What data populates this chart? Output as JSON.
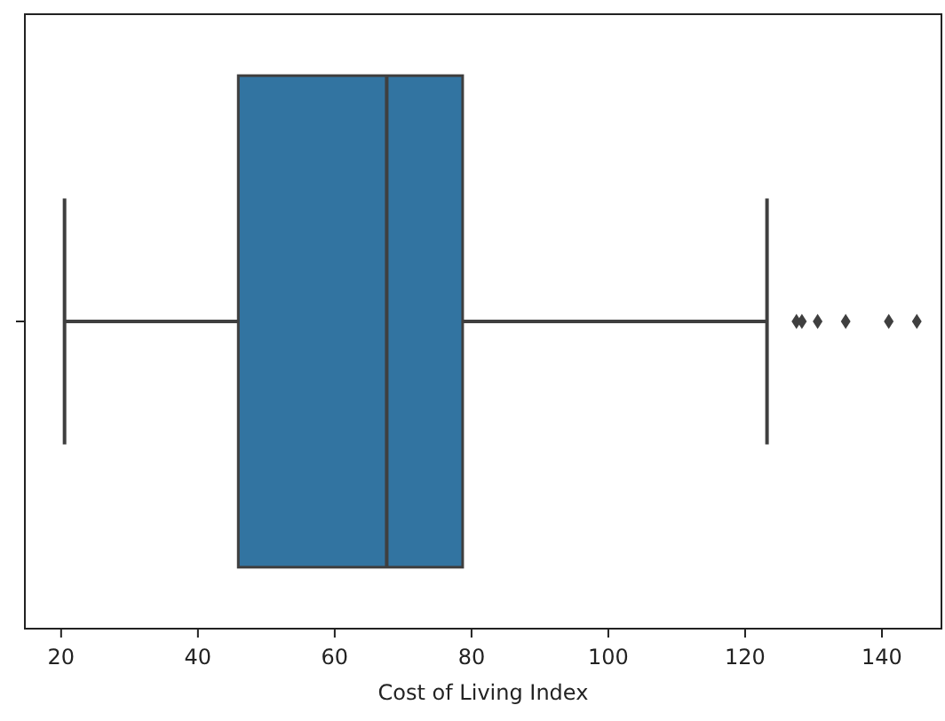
{
  "chart_data": {
    "type": "box",
    "orientation": "horizontal",
    "xlabel": "Cost of Living Index",
    "categories": [
      null
    ],
    "color": "#3274a1",
    "marker": "diamond",
    "boxes": [
      {
        "low": 20.5,
        "q1": 45.9,
        "median": 67.6,
        "q3": 78.7,
        "high": 123.2,
        "outliers": [
          127.5,
          128.3,
          130.6,
          134.7,
          141.0,
          145.1
        ]
      }
    ],
    "xlim": [
      14.7,
      148.7
    ],
    "xticks": [
      20,
      40,
      60,
      80,
      100,
      120,
      140
    ],
    "tick_labels": "x",
    "grid": false
  }
}
